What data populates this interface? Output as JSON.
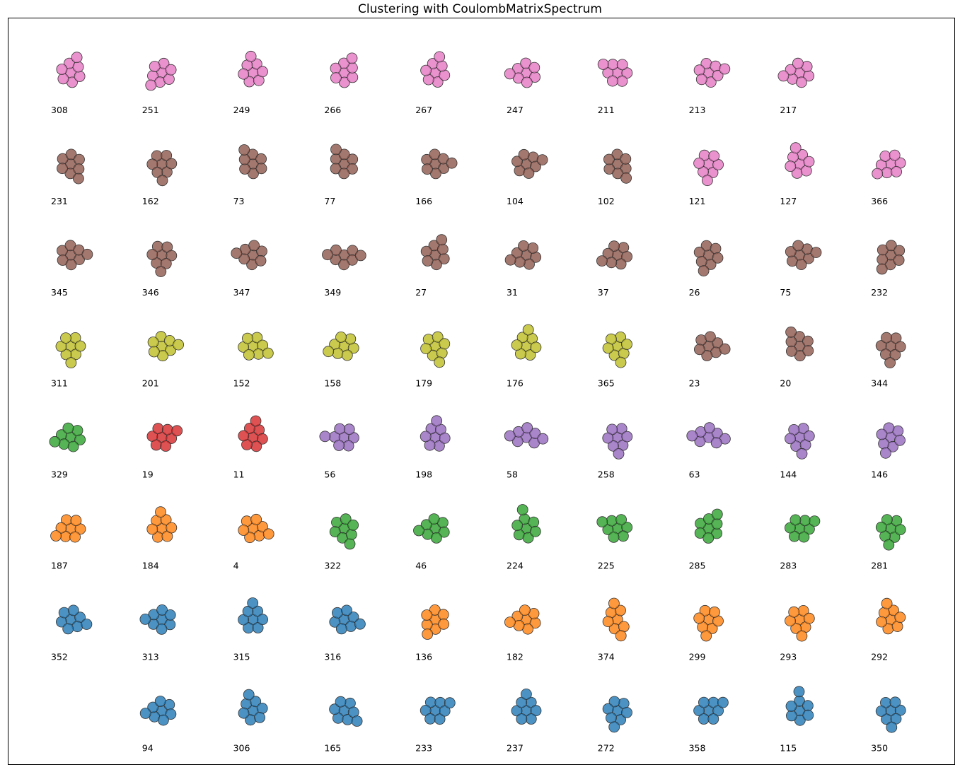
{
  "chart_data": {
    "type": "scatter",
    "title": "Clustering with CoulombMatrixSpectrum",
    "xlabel": "",
    "ylabel": "",
    "grid": false,
    "legend": "none",
    "cluster_colors": {
      "pink": "#e377c2",
      "brown": "#8c564b",
      "olive": "#bcbd22",
      "green": "#2ca02c",
      "red": "#d62728",
      "purple": "#9467bd",
      "orange": "#ff7f0e",
      "blue": "#1f77b4"
    },
    "rows": [
      [
        {
          "label": "308",
          "cluster": "pink",
          "atoms": 8
        },
        {
          "label": "251",
          "cluster": "pink",
          "atoms": 8
        },
        {
          "label": "249",
          "cluster": "pink",
          "atoms": 8
        },
        {
          "label": "266",
          "cluster": "pink",
          "atoms": 8
        },
        {
          "label": "267",
          "cluster": "pink",
          "atoms": 8
        },
        {
          "label": "247",
          "cluster": "pink",
          "atoms": 8
        },
        {
          "label": "211",
          "cluster": "pink",
          "atoms": 8
        },
        {
          "label": "213",
          "cluster": "pink",
          "atoms": 8
        },
        {
          "label": "217",
          "cluster": "pink",
          "atoms": 8
        },
        null
      ],
      [
        {
          "label": "231",
          "cluster": "brown",
          "atoms": 8
        },
        {
          "label": "162",
          "cluster": "brown",
          "atoms": 8
        },
        {
          "label": "73",
          "cluster": "brown",
          "atoms": 8
        },
        {
          "label": "77",
          "cluster": "brown",
          "atoms": 8
        },
        {
          "label": "166",
          "cluster": "brown",
          "atoms": 8
        },
        {
          "label": "104",
          "cluster": "brown",
          "atoms": 8
        },
        {
          "label": "102",
          "cluster": "brown",
          "atoms": 8
        },
        {
          "label": "121",
          "cluster": "pink",
          "atoms": 8
        },
        {
          "label": "127",
          "cluster": "pink",
          "atoms": 8
        },
        {
          "label": "366",
          "cluster": "pink",
          "atoms": 8
        }
      ],
      [
        {
          "label": "345",
          "cluster": "brown",
          "atoms": 8
        },
        {
          "label": "346",
          "cluster": "brown",
          "atoms": 8
        },
        {
          "label": "347",
          "cluster": "brown",
          "atoms": 8
        },
        {
          "label": "349",
          "cluster": "brown",
          "atoms": 8
        },
        {
          "label": "27",
          "cluster": "brown",
          "atoms": 8
        },
        {
          "label": "31",
          "cluster": "brown",
          "atoms": 8
        },
        {
          "label": "37",
          "cluster": "brown",
          "atoms": 8
        },
        {
          "label": "26",
          "cluster": "brown",
          "atoms": 8
        },
        {
          "label": "75",
          "cluster": "brown",
          "atoms": 8
        },
        {
          "label": "232",
          "cluster": "brown",
          "atoms": 8
        }
      ],
      [
        {
          "label": "311",
          "cluster": "olive",
          "atoms": 8
        },
        {
          "label": "201",
          "cluster": "olive",
          "atoms": 8
        },
        {
          "label": "152",
          "cluster": "olive",
          "atoms": 8
        },
        {
          "label": "158",
          "cluster": "olive",
          "atoms": 8
        },
        {
          "label": "179",
          "cluster": "olive",
          "atoms": 8
        },
        {
          "label": "176",
          "cluster": "olive",
          "atoms": 8
        },
        {
          "label": "365",
          "cluster": "olive",
          "atoms": 8
        },
        {
          "label": "23",
          "cluster": "brown",
          "atoms": 8
        },
        {
          "label": "20",
          "cluster": "brown",
          "atoms": 8
        },
        {
          "label": "344",
          "cluster": "brown",
          "atoms": 8
        }
      ],
      [
        {
          "label": "329",
          "cluster": "green",
          "atoms": 8
        },
        {
          "label": "19",
          "cluster": "red",
          "atoms": 8
        },
        {
          "label": "11",
          "cluster": "red",
          "atoms": 8
        },
        {
          "label": "56",
          "cluster": "purple",
          "atoms": 8
        },
        {
          "label": "198",
          "cluster": "purple",
          "atoms": 8
        },
        {
          "label": "58",
          "cluster": "purple",
          "atoms": 8
        },
        {
          "label": "258",
          "cluster": "purple",
          "atoms": 8
        },
        {
          "label": "63",
          "cluster": "purple",
          "atoms": 8
        },
        {
          "label": "144",
          "cluster": "purple",
          "atoms": 8
        },
        {
          "label": "146",
          "cluster": "purple",
          "atoms": 8
        }
      ],
      [
        {
          "label": "187",
          "cluster": "orange",
          "atoms": 8
        },
        {
          "label": "184",
          "cluster": "orange",
          "atoms": 8
        },
        {
          "label": "4",
          "cluster": "orange",
          "atoms": 8
        },
        {
          "label": "322",
          "cluster": "green",
          "atoms": 8
        },
        {
          "label": "46",
          "cluster": "green",
          "atoms": 8
        },
        {
          "label": "224",
          "cluster": "green",
          "atoms": 8
        },
        {
          "label": "225",
          "cluster": "green",
          "atoms": 8
        },
        {
          "label": "285",
          "cluster": "green",
          "atoms": 8
        },
        {
          "label": "283",
          "cluster": "green",
          "atoms": 8
        },
        {
          "label": "281",
          "cluster": "green",
          "atoms": 8
        }
      ],
      [
        {
          "label": "352",
          "cluster": "blue",
          "atoms": 8
        },
        {
          "label": "313",
          "cluster": "blue",
          "atoms": 8
        },
        {
          "label": "315",
          "cluster": "blue",
          "atoms": 8
        },
        {
          "label": "316",
          "cluster": "blue",
          "atoms": 8
        },
        {
          "label": "136",
          "cluster": "orange",
          "atoms": 8
        },
        {
          "label": "182",
          "cluster": "orange",
          "atoms": 8
        },
        {
          "label": "374",
          "cluster": "orange",
          "atoms": 8
        },
        {
          "label": "299",
          "cluster": "orange",
          "atoms": 8
        },
        {
          "label": "293",
          "cluster": "orange",
          "atoms": 8
        },
        {
          "label": "292",
          "cluster": "orange",
          "atoms": 8
        }
      ],
      [
        null,
        {
          "label": "94",
          "cluster": "blue",
          "atoms": 8
        },
        {
          "label": "306",
          "cluster": "blue",
          "atoms": 8
        },
        {
          "label": "165",
          "cluster": "blue",
          "atoms": 8
        },
        {
          "label": "233",
          "cluster": "blue",
          "atoms": 8
        },
        {
          "label": "237",
          "cluster": "blue",
          "atoms": 8
        },
        {
          "label": "272",
          "cluster": "blue",
          "atoms": 8
        },
        {
          "label": "358",
          "cluster": "blue",
          "atoms": 8
        },
        {
          "label": "115",
          "cluster": "blue",
          "atoms": 8
        },
        {
          "label": "350",
          "cluster": "blue",
          "atoms": 8
        }
      ]
    ]
  }
}
